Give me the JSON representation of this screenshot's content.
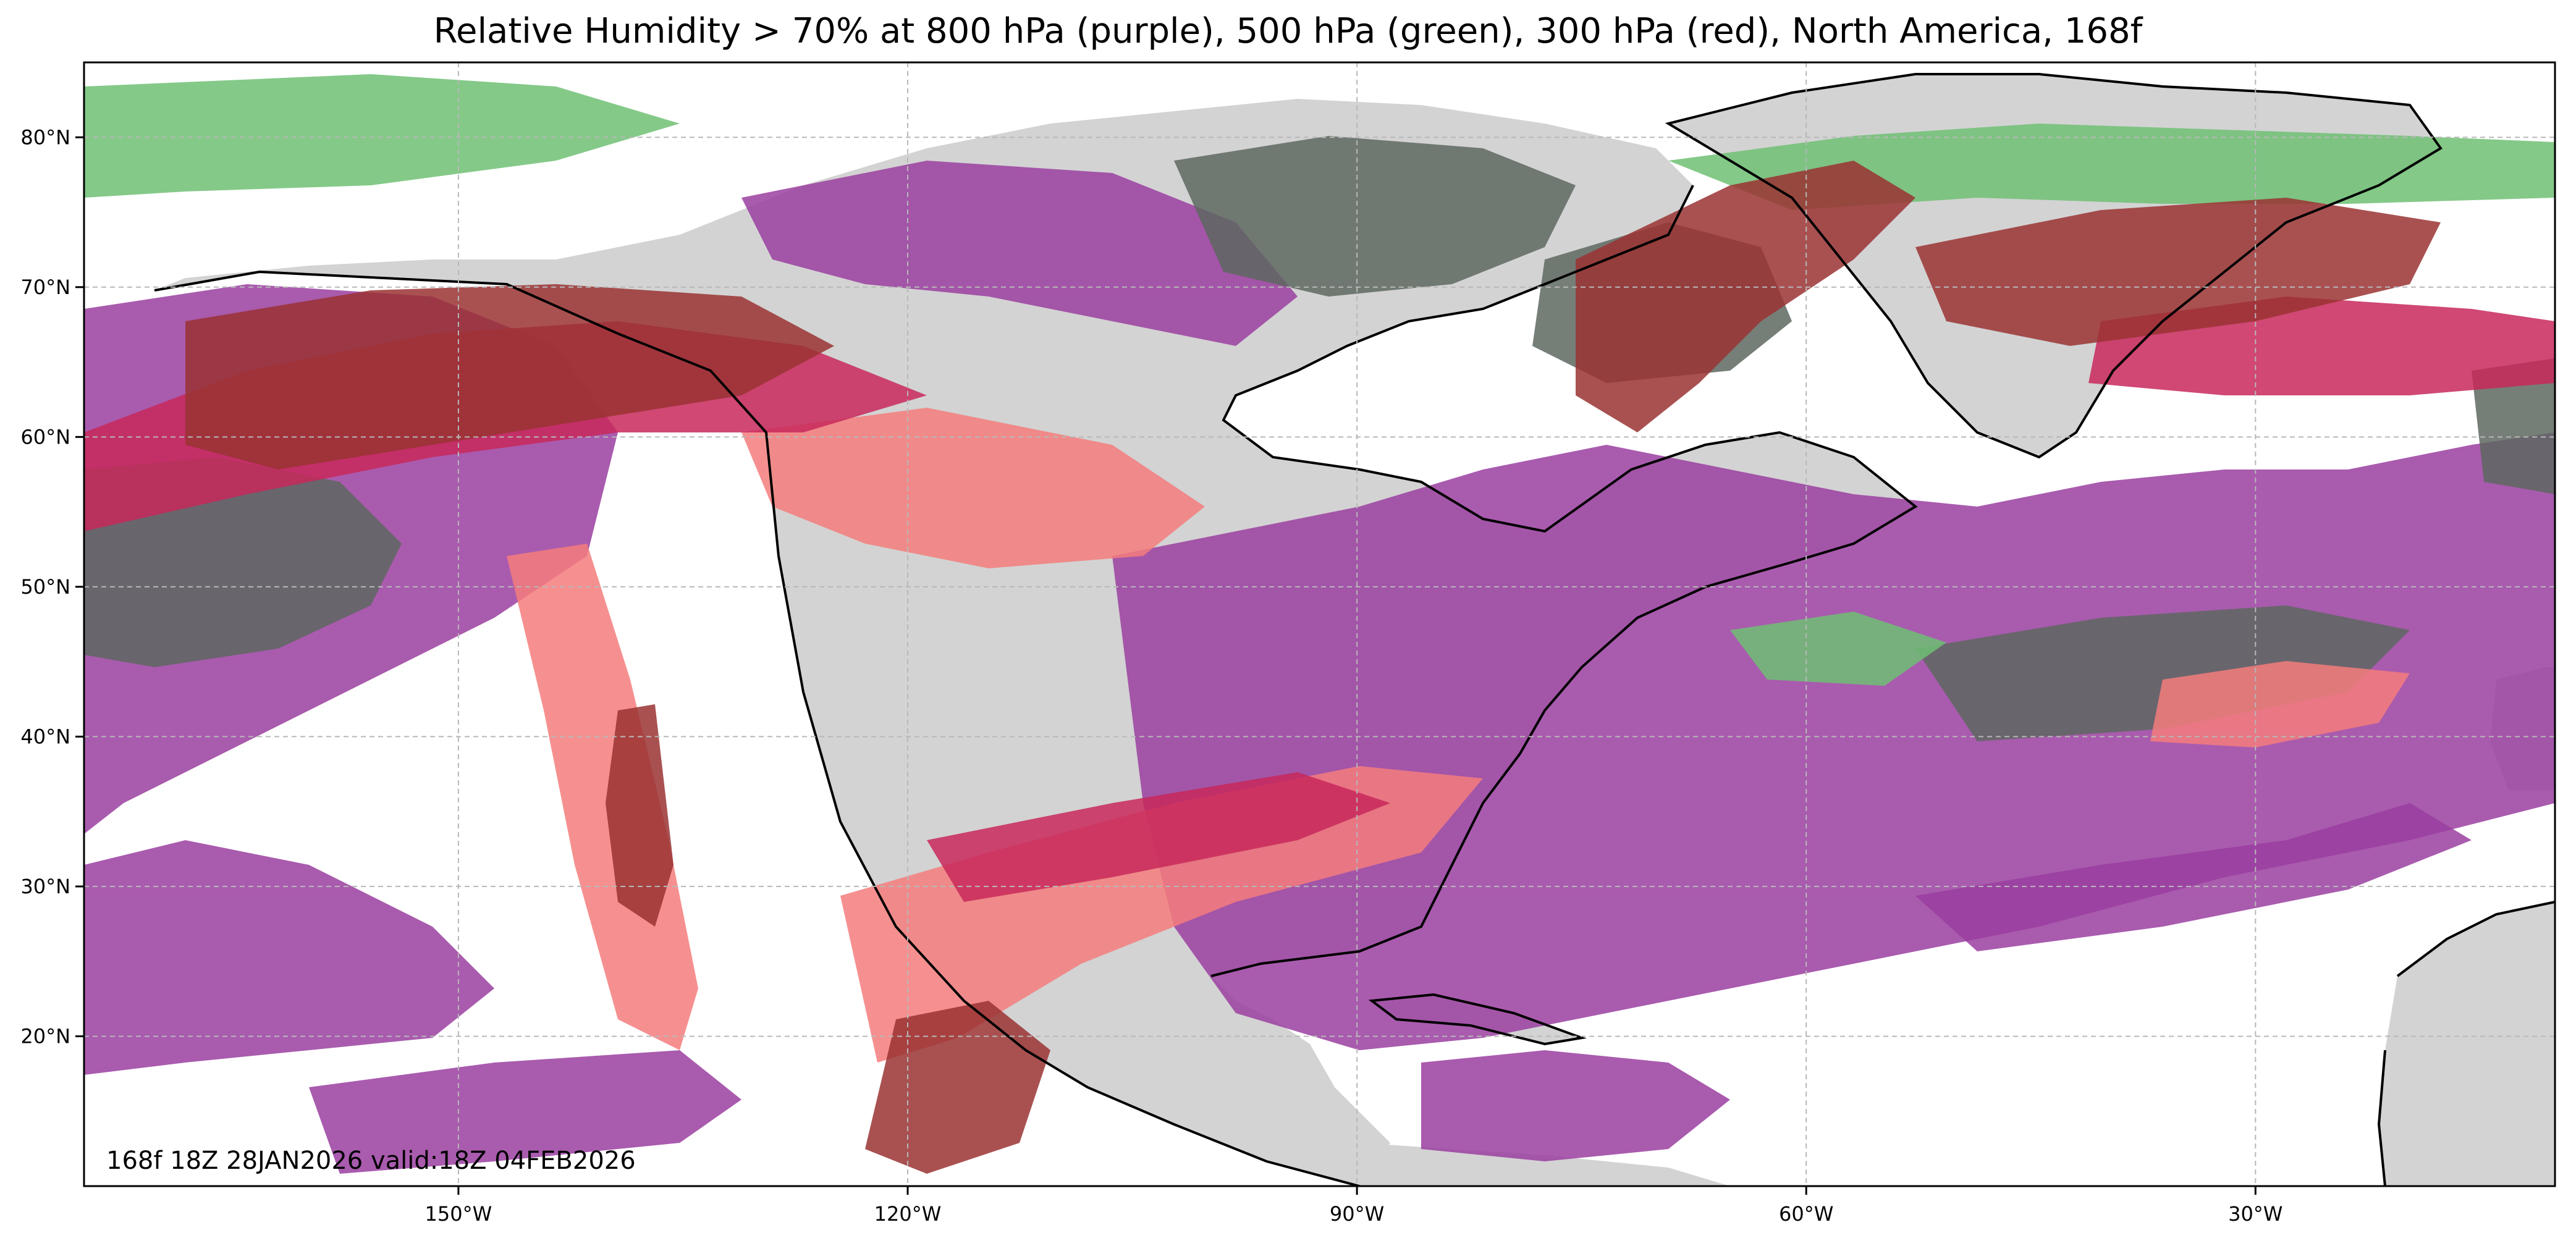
{
  "title": "Relative Humidity > 70% at 800 hPa (purple), 500 hPa (green), 300 hPa (red), North America, 168f",
  "run_label": "168f 18Z 28JAN2026 valid:18Z 04FEB2026",
  "colors": {
    "land": "#d3d3d3",
    "ocean": "#ffffff",
    "rh_800hPa": "#9a3ea0",
    "rh_500hPa": "#6fbf73",
    "rh_800_500_overlap": "#5e6760",
    "rh_300hPa": "#f47c7c",
    "rh_300_800_overlap": "#c8285a",
    "rh_all_levels_overlap": "#9a3333",
    "coastline": "#000000",
    "gridline": "#b8b8b8"
  },
  "map": {
    "projection": "PlateCarree",
    "lon_range": [
      -175,
      -10
    ],
    "lat_range": [
      10,
      85
    ],
    "lon_ticks": [
      {
        "lon": -150,
        "label": "150°W"
      },
      {
        "lon": -120,
        "label": "120°W"
      },
      {
        "lon": -90,
        "label": "90°W"
      },
      {
        "lon": -60,
        "label": "60°W"
      },
      {
        "lon": -30,
        "label": "30°W"
      }
    ],
    "lat_ticks": [
      {
        "lat": 20,
        "label": "20°N"
      },
      {
        "lat": 30,
        "label": "30°N"
      },
      {
        "lat": 40,
        "label": "40°N"
      },
      {
        "lat": 50,
        "label": "50°N"
      },
      {
        "lat": 60,
        "label": "60°N"
      },
      {
        "lat": 70,
        "label": "70°N"
      },
      {
        "lat": 80,
        "label": "80°N"
      }
    ],
    "gridlines": true
  }
}
